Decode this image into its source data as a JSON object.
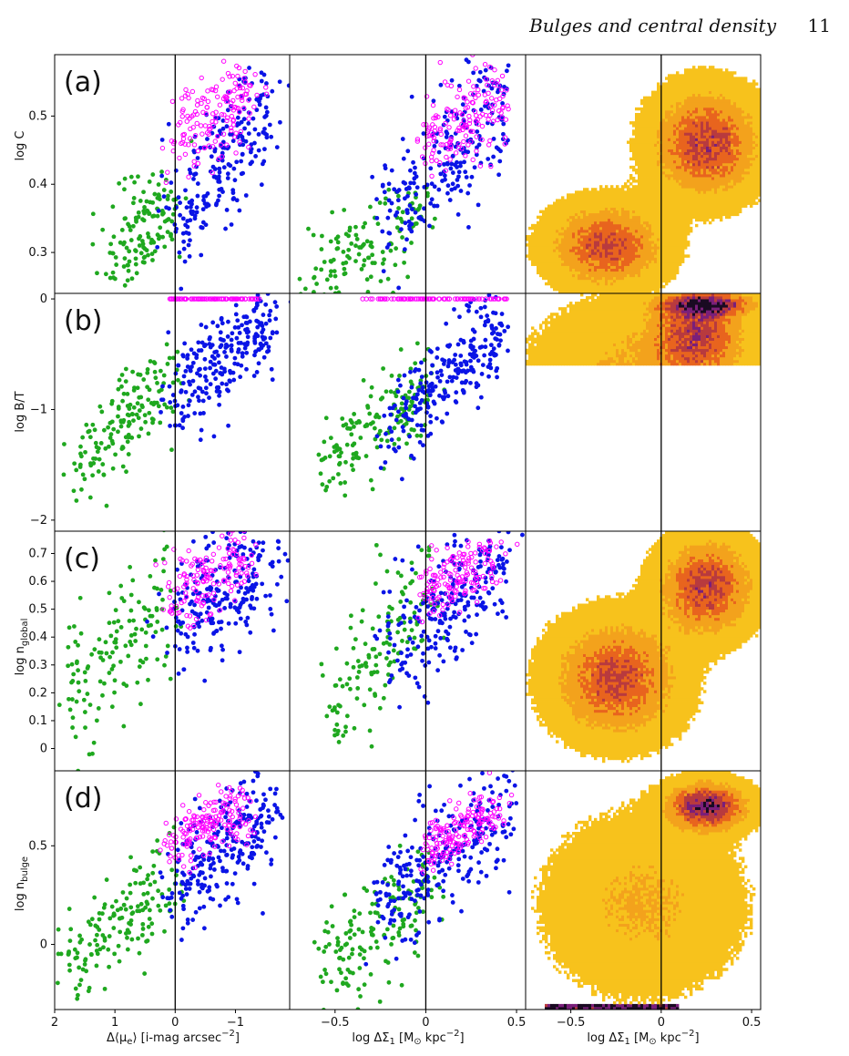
{
  "header": {
    "running_title": "Bulges and central density",
    "page_number": "11"
  },
  "colors": {
    "star_forming": "#1fa81f",
    "quiescent": "#0a14e6",
    "elliptical_open": "#ff00ff",
    "heat_low": "#f7c21c",
    "heat_mid": "#e8641e",
    "heat_high": "#7a1f7a",
    "heat_peak": "#1a0a22"
  },
  "chart_data": [
    {
      "type": "scatter",
      "panel": "a",
      "row_label": "(a)",
      "column": 1,
      "ylabel": "log C",
      "xlabel": "",
      "xlim": [
        2,
        -1.9
      ],
      "ylim": [
        0.24,
        0.59
      ],
      "yticks": [
        "0.3",
        "0.4",
        "0.5"
      ],
      "xticks": [],
      "series": [
        {
          "values_summary": "green filled",
          "center": [
            0.8,
            0.32
          ],
          "slope_dy_dx": -0.03
        },
        {
          "values_summary": "blue filled",
          "center": [
            -0.8,
            0.43
          ],
          "slope_dy_dx": -0.05
        },
        {
          "values_summary": "magenta open",
          "center": [
            -0.7,
            0.52
          ],
          "slope_dy_dx": -0.02
        }
      ]
    },
    {
      "type": "scatter",
      "panel": "a",
      "column": 2,
      "xlim": [
        -0.75,
        0.55
      ],
      "ylim": [
        0.24,
        0.59
      ],
      "yticks": [],
      "xticks": [],
      "series": [
        {
          "values_summary": "green filled",
          "center": [
            -0.3,
            0.31
          ]
        },
        {
          "values_summary": "blue filled",
          "center": [
            0.15,
            0.44
          ]
        },
        {
          "values_summary": "magenta open",
          "center": [
            0.25,
            0.51
          ]
        }
      ]
    },
    {
      "type": "heatmap",
      "panel": "a",
      "column": 3,
      "xlim": [
        -0.75,
        0.55
      ],
      "ylim": [
        0.24,
        0.59
      ],
      "yticks": [],
      "xticks": [],
      "density_peaks": [
        [
          -0.3,
          0.31
        ],
        [
          0.25,
          0.46
        ]
      ]
    },
    {
      "type": "scatter",
      "panel": "b",
      "row_label": "(b)",
      "column": 1,
      "ylabel": "log B/T",
      "xlim": [
        2,
        -1.9
      ],
      "ylim": [
        -2.1,
        0.05
      ],
      "yticks": [
        "−2",
        "−1",
        "0"
      ],
      "xticks": [],
      "series": [
        {
          "values_summary": "green filled",
          "center": [
            0.7,
            -1.15
          ]
        },
        {
          "values_summary": "blue filled",
          "center": [
            -0.9,
            -0.45
          ]
        },
        {
          "values_summary": "magenta open",
          "y_fixed": 0.0,
          "x_range": [
            0.1,
            -1.4
          ]
        }
      ]
    },
    {
      "type": "scatter",
      "panel": "b",
      "column": 2,
      "xlim": [
        -0.75,
        0.55
      ],
      "ylim": [
        -2.1,
        0.05
      ],
      "yticks": [],
      "xticks": [],
      "series": [
        {
          "values_summary": "green filled",
          "center": [
            -0.2,
            -1.2
          ]
        },
        {
          "values_summary": "blue filled",
          "center": [
            0.15,
            -0.5
          ]
        },
        {
          "values_summary": "magenta open",
          "y_fixed": 0.0,
          "x_range": [
            -0.4,
            0.45
          ]
        }
      ]
    },
    {
      "type": "heatmap",
      "panel": "b",
      "column": 3,
      "xlim": [
        -0.75,
        0.55
      ],
      "ylim": [
        -2.1,
        0.05
      ],
      "yticks": [],
      "xticks": [],
      "density_peaks": [
        [
          0.25,
          -0.05
        ],
        [
          0.2,
          -0.3
        ]
      ]
    },
    {
      "type": "scatter",
      "panel": "c",
      "row_label": "(c)",
      "column": 1,
      "ylabel": "log n_global",
      "xlim": [
        2,
        -1.9
      ],
      "ylim": [
        -0.08,
        0.78
      ],
      "yticks": [
        "0",
        "0.1",
        "0.2",
        "0.3",
        "0.4",
        "0.5",
        "0.6",
        "0.7"
      ],
      "xticks": [],
      "series": [
        {
          "values_summary": "green filled",
          "center": [
            0.8,
            0.35
          ]
        },
        {
          "values_summary": "blue filled",
          "center": [
            -0.8,
            0.55
          ]
        },
        {
          "values_summary": "magenta open",
          "center": [
            -0.6,
            0.62
          ]
        }
      ]
    },
    {
      "type": "scatter",
      "panel": "c",
      "column": 2,
      "xlim": [
        -0.75,
        0.55
      ],
      "ylim": [
        -0.08,
        0.78
      ],
      "yticks": [],
      "xticks": [],
      "series": [
        {
          "values_summary": "green filled",
          "center": [
            -0.2,
            0.38
          ]
        },
        {
          "values_summary": "blue filled",
          "center": [
            0.1,
            0.55
          ]
        },
        {
          "values_summary": "magenta open",
          "center": [
            0.2,
            0.63
          ]
        }
      ]
    },
    {
      "type": "heatmap",
      "panel": "c",
      "column": 3,
      "xlim": [
        -0.75,
        0.55
      ],
      "ylim": [
        -0.08,
        0.78
      ],
      "yticks": [],
      "xticks": [],
      "density_peaks": [
        [
          -0.25,
          0.25
        ],
        [
          0.25,
          0.58
        ]
      ]
    },
    {
      "type": "scatter",
      "panel": "d",
      "row_label": "(d)",
      "column": 1,
      "ylabel": "log n_bulge",
      "xlabel": "Δ⟨μe⟩ [i-mag arcsec⁻²]",
      "xlim": [
        2,
        -1.9
      ],
      "ylim": [
        -0.33,
        0.88
      ],
      "yticks": [
        "0",
        "0.5"
      ],
      "xticks": [
        "2",
        "1",
        "0",
        "−1"
      ],
      "series": [
        {
          "values_summary": "green filled",
          "center": [
            0.8,
            0.1
          ]
        },
        {
          "values_summary": "blue filled",
          "center": [
            -0.8,
            0.55
          ]
        },
        {
          "values_summary": "magenta open",
          "center": [
            -0.6,
            0.62
          ]
        }
      ]
    },
    {
      "type": "scatter",
      "panel": "d",
      "column": 2,
      "xlabel": "log ΔΣ1 [M⊙ kpc⁻²]",
      "xlim": [
        -0.75,
        0.55
      ],
      "ylim": [
        -0.33,
        0.88
      ],
      "yticks": [],
      "xticks": [
        "−0.5",
        "0",
        "0.5"
      ],
      "series": [
        {
          "values_summary": "green filled",
          "center": [
            -0.2,
            0.15
          ]
        },
        {
          "values_summary": "blue filled",
          "center": [
            0.1,
            0.5
          ]
        },
        {
          "values_summary": "magenta open",
          "center": [
            0.2,
            0.62
          ]
        }
      ]
    },
    {
      "type": "heatmap",
      "panel": "d",
      "column": 3,
      "xlabel": "log ΔΣ1 [M⊙ kpc⁻²]",
      "xlim": [
        -0.75,
        0.55
      ],
      "ylim": [
        -0.33,
        0.88
      ],
      "yticks": [],
      "xticks": [
        "−0.5",
        "0",
        "0.5"
      ],
      "density_peaks": [
        [
          0.25,
          0.7
        ]
      ]
    }
  ]
}
